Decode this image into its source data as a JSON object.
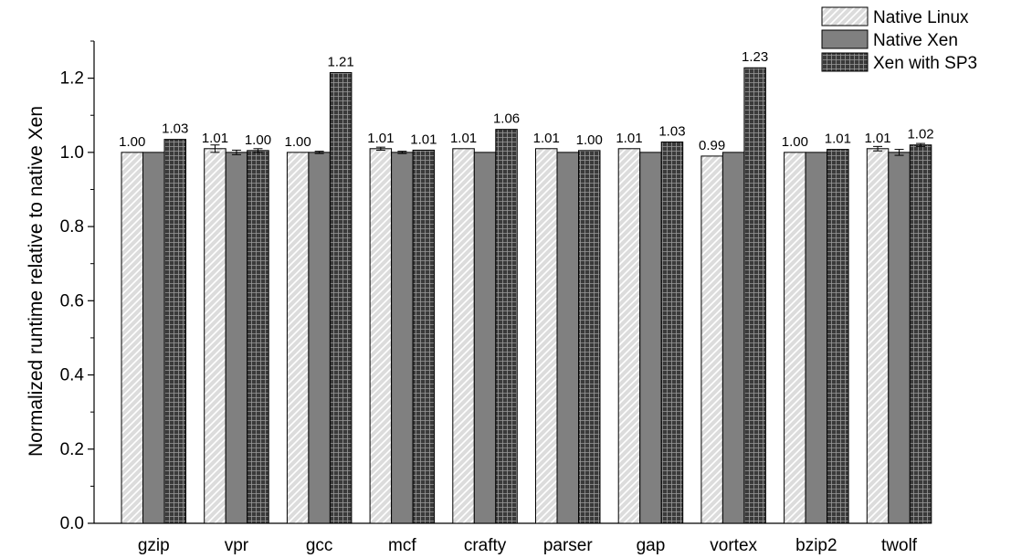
{
  "chart_data": {
    "type": "bar",
    "title": "",
    "xlabel": "",
    "ylabel": "Normalized runtime relative to native Xen",
    "ylim": [
      0,
      1.3
    ],
    "yticks": [
      "0.0",
      "0.2",
      "0.4",
      "0.6",
      "0.8",
      "1.0",
      "1.2"
    ],
    "grid": false,
    "legend_position": "top-right",
    "categories": [
      "gzip",
      "vpr",
      "gcc",
      "mcf",
      "crafty",
      "parser",
      "gap",
      "vortex",
      "bzip2",
      "twolf"
    ],
    "series": [
      {
        "name": "Native Linux",
        "pattern": "diagonal-hatch",
        "color": "#d9d9d9",
        "values": [
          1.0,
          1.01,
          1.0,
          1.01,
          1.01,
          1.01,
          1.01,
          0.99,
          1.0,
          1.01
        ],
        "labels": [
          "1.00",
          "1.01",
          "1.00",
          "1.01",
          "1.01",
          "1.01",
          "1.01",
          "0.99",
          "1.00",
          "1.01"
        ],
        "errors": [
          0,
          0.01,
          0,
          0.004,
          0,
          0,
          0,
          0,
          0,
          0.006
        ]
      },
      {
        "name": "Native Xen",
        "pattern": "solid",
        "color": "#808080",
        "values": [
          1.0,
          1.0,
          1.0,
          1.0,
          1.0,
          1.0,
          1.0,
          1.0,
          1.0,
          1.0
        ],
        "labels": [],
        "errors": [
          0,
          0.006,
          0.003,
          0.003,
          0,
          0,
          0,
          0,
          0,
          0.008
        ]
      },
      {
        "name": "Xen with SP3",
        "pattern": "grid",
        "color": "#333333",
        "values": [
          1.035,
          1.005,
          1.215,
          1.006,
          1.062,
          1.005,
          1.028,
          1.228,
          1.008,
          1.02
        ],
        "labels": [
          "1.03",
          "1.00",
          "1.21",
          "1.01",
          "1.06",
          "1.00",
          "1.03",
          "1.23",
          "1.01",
          "1.02"
        ],
        "errors": [
          0,
          0.005,
          0,
          0,
          0,
          0,
          0,
          0,
          0,
          0.004
        ]
      }
    ]
  }
}
